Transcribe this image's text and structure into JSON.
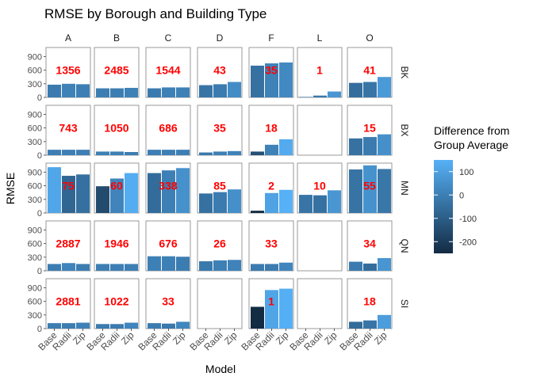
{
  "chart_data": {
    "type": "bar",
    "title": "RMSE by Borough and Building Type",
    "xlabel": "Model",
    "ylabel": "RMSE",
    "categories": [
      "Base",
      "Radii",
      "Zip"
    ],
    "ylim": [
      0,
      1100
    ],
    "yticks": [
      0,
      300,
      600,
      900
    ],
    "columns": [
      "A",
      "B",
      "C",
      "D",
      "F",
      "L",
      "O"
    ],
    "rows": [
      "BK",
      "BX",
      "MN",
      "QN",
      "SI"
    ],
    "legend": {
      "title_lines": [
        "Difference from",
        "Group Average"
      ],
      "ticks": [
        100,
        0,
        -100,
        -200
      ],
      "range": [
        -250,
        150
      ],
      "placement": "right",
      "colors": {
        "low": "#132B43",
        "high": "#56B1F7"
      }
    },
    "label_color": "#FF0000",
    "panels": [
      {
        "row": "BK",
        "col": "A",
        "label": "1356",
        "values": [
          280,
          300,
          290
        ]
      },
      {
        "row": "BK",
        "col": "B",
        "label": "2485",
        "values": [
          200,
          200,
          210
        ]
      },
      {
        "row": "BK",
        "col": "C",
        "label": "1544",
        "values": [
          200,
          220,
          220
        ]
      },
      {
        "row": "BK",
        "col": "D",
        "label": "43",
        "values": [
          270,
          290,
          340
        ]
      },
      {
        "row": "BK",
        "col": "F",
        "label": "35",
        "values": [
          700,
          750,
          770
        ]
      },
      {
        "row": "BK",
        "col": "L",
        "label": "1",
        "values": [
          10,
          40,
          130
        ]
      },
      {
        "row": "BK",
        "col": "O",
        "label": "41",
        "values": [
          320,
          340,
          450
        ]
      },
      {
        "row": "BX",
        "col": "A",
        "label": "743",
        "values": [
          120,
          120,
          120
        ]
      },
      {
        "row": "BX",
        "col": "B",
        "label": "1050",
        "values": [
          80,
          80,
          70
        ]
      },
      {
        "row": "BX",
        "col": "C",
        "label": "686",
        "values": [
          120,
          120,
          120
        ]
      },
      {
        "row": "BX",
        "col": "D",
        "label": "35",
        "values": [
          60,
          80,
          90
        ]
      },
      {
        "row": "BX",
        "col": "F",
        "label": "18",
        "values": [
          80,
          230,
          350
        ]
      },
      {
        "row": "BX",
        "col": "O",
        "label": "15",
        "values": [
          370,
          400,
          460
        ]
      },
      {
        "row": "MN",
        "col": "A",
        "label": "75",
        "values": [
          1010,
          820,
          850
        ]
      },
      {
        "row": "MN",
        "col": "B",
        "label": "60",
        "values": [
          590,
          760,
          880
        ]
      },
      {
        "row": "MN",
        "col": "C",
        "label": "338",
        "values": [
          880,
          940,
          990
        ]
      },
      {
        "row": "MN",
        "col": "D",
        "label": "85",
        "values": [
          430,
          460,
          520
        ]
      },
      {
        "row": "MN",
        "col": "F",
        "label": "2",
        "values": [
          50,
          440,
          510
        ]
      },
      {
        "row": "MN",
        "col": "L",
        "label": "10",
        "values": [
          400,
          390,
          500
        ]
      },
      {
        "row": "MN",
        "col": "O",
        "label": "55",
        "values": [
          960,
          1050,
          970
        ]
      },
      {
        "row": "QN",
        "col": "A",
        "label": "2887",
        "values": [
          150,
          170,
          150
        ]
      },
      {
        "row": "QN",
        "col": "B",
        "label": "1946",
        "values": [
          150,
          150,
          150
        ]
      },
      {
        "row": "QN",
        "col": "C",
        "label": "676",
        "values": [
          320,
          320,
          310
        ]
      },
      {
        "row": "QN",
        "col": "D",
        "label": "26",
        "values": [
          210,
          230,
          240
        ]
      },
      {
        "row": "QN",
        "col": "F",
        "label": "33",
        "values": [
          150,
          150,
          180
        ]
      },
      {
        "row": "QN",
        "col": "O",
        "label": "34",
        "values": [
          200,
          160,
          280
        ]
      },
      {
        "row": "SI",
        "col": "A",
        "label": "2881",
        "values": [
          120,
          120,
          130
        ]
      },
      {
        "row": "SI",
        "col": "B",
        "label": "1022",
        "values": [
          100,
          100,
          130
        ]
      },
      {
        "row": "SI",
        "col": "C",
        "label": "33",
        "values": [
          120,
          110,
          150
        ]
      },
      {
        "row": "SI",
        "col": "F",
        "label": "1",
        "values": [
          480,
          850,
          880
        ]
      },
      {
        "row": "SI",
        "col": "O",
        "label": "18",
        "values": [
          150,
          180,
          300
        ]
      }
    ]
  }
}
